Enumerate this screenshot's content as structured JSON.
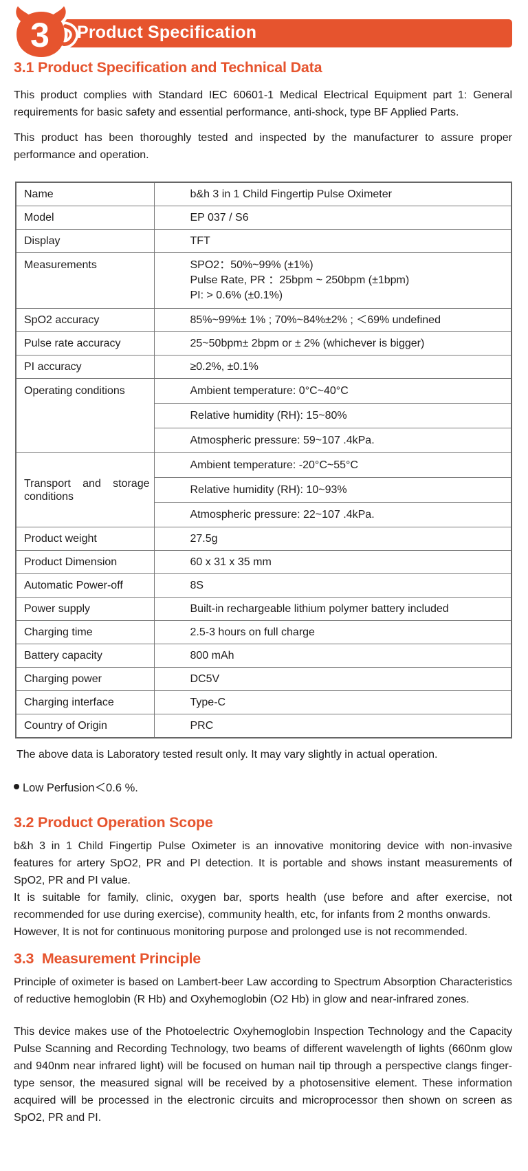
{
  "accent_color": "#E6542E",
  "header": {
    "chapter_number": "3",
    "title": "Product Specification"
  },
  "section31": {
    "heading": "3.1 Product Specification and Technical Data",
    "paragraphs": [
      "This product complies with Standard IEC 60601-1 Medical Electrical Equipment part 1: General requirements for basic safety and essential performance, anti-shock, type BF Applied Parts.",
      "This product has been thoroughly tested and inspected by the manufacturer to assure proper performance and operation."
    ]
  },
  "spec_table": {
    "rows": [
      {
        "label": "Name",
        "value": "b&h 3 in 1 Child  Fingertip Pulse Oximeter"
      },
      {
        "label": "Model",
        "value": "EP 037 / S6"
      },
      {
        "label": "Display",
        "value": "TFT"
      },
      {
        "label": "Measurements",
        "label_top": true,
        "lines": [
          "SPO2：50%~99% (±1%)",
          "Pulse Rate, PR ：25bpm ~ 250bpm (±1bpm)",
          "PI: > 0.6% (±0.1%)"
        ]
      },
      {
        "label": "SpO2 accuracy",
        "value": "85%~99%± 1% ; 70%~84%±2% ; ＜69% undefined"
      },
      {
        "label": "Pulse rate accuracy",
        "value": "25~50bpm± 2bpm or ± 2% (whichever is bigger)"
      },
      {
        "label": "PI accuracy",
        "value": "≥0.2%, ±0.1%"
      },
      {
        "label": "Operating conditions",
        "label_top": true,
        "sub": [
          "Ambient temperature: 0°C~40°C",
          "Relative humidity (RH): 15~80%",
          "Atmospheric pressure: 59~107 .4kPa."
        ]
      },
      {
        "label": "Transport and storage conditions",
        "justify_label": true,
        "sub": [
          "Ambient temperature: -20°C~55°C",
          "Relative humidity (RH): 10~93%",
          "Atmospheric pressure: 22~107 .4kPa."
        ]
      },
      {
        "label": "Product weight",
        "value": "27.5g"
      },
      {
        "label": "Product Dimension",
        "value": "60 x 31 x 35 mm"
      },
      {
        "label": "Automatic Power-off",
        "value": "8S"
      },
      {
        "label": "Power supply",
        "value": "Built-in rechargeable lithium polymer battery included"
      },
      {
        "label": "Charging time",
        "value": "2.5-3 hours on full charge"
      },
      {
        "label": "Battery capacity",
        "value": "800 mAh"
      },
      {
        "label": "Charging power",
        "value": "DC5V"
      },
      {
        "label": "Charging interface",
        "value": "Type-C"
      },
      {
        "label": "Country of Origin",
        "value": "PRC"
      }
    ]
  },
  "table_note": "The above data is Laboratory tested result only. It may vary slightly in actual operation.",
  "bullet_note": "Low Perfusion＜0.6 %.",
  "section32": {
    "heading": "3.2 Product Operation Scope",
    "paragraphs": [
      "b&h 3 in 1 Child  Fingertip Pulse Oximeter is an innovative monitoring device with non-invasive features for artery SpO2,  PR and PI detection. It is portable and shows instant measurements of SpO2, PR and PI value.",
      "It is suitable for family, clinic, oxygen bar, sports health (use before and after exercise, not recommended for use during exercise), community health, etc,  for infants from 2 months onwards.",
      "However, It is not for continuous monitoring purpose and prolonged use is not recommended."
    ]
  },
  "section33": {
    "heading": "3.3  Measurement Principle",
    "paragraphs": [
      "Principle of oximeter is based on Lambert-beer Law according to Spectrum Absorption Characteristics of reductive hemoglobin (R Hb) and Oxyhemoglobin (O2 Hb) in glow and near-infrared zones.",
      "This device makes use of the Photoelectric Oxyhemoglobin Inspection Technology and the Capacity Pulse Scanning and Recording Technology,  two beams of different wavelength of lights (660nm glow and 940nm near infrared light) will be focused on human nail tip through a perspective clangs finger-type sensor, the measured signal will be received by a photosensitive element. These information acquired will be processed in the electronic circuits and microprocessor then shown on screen as SpO2, PR and PI."
    ]
  }
}
